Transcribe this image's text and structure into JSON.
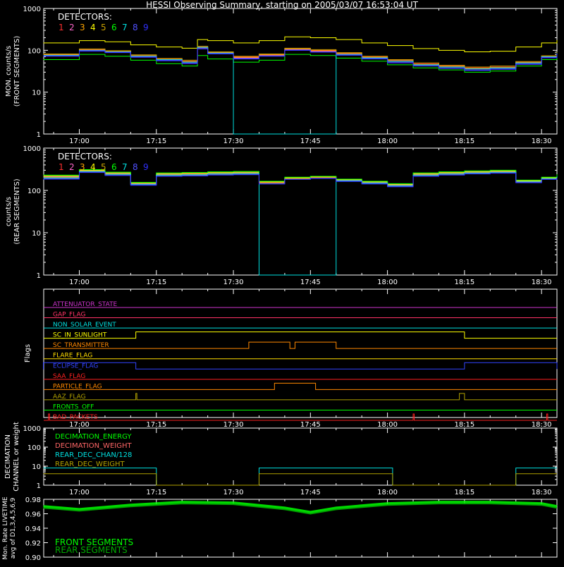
{
  "title": "HESSI Observing Summary, starting on 2005/03/07 16:53:04 UT",
  "colors": {
    "background": "#000000",
    "axes": "#ffffff",
    "detectors": [
      "#ff3030",
      "#ff66cc",
      "#ffa500",
      "#ffff00",
      "#c8a000",
      "#00ff00",
      "#00e0e0",
      "#5050ff",
      "#3030ff"
    ]
  },
  "time_axis": {
    "start": "16:53:04",
    "end": "18:33:00",
    "tick_labels": [
      "17:00",
      "17:15",
      "17:30",
      "17:45",
      "18:00",
      "18:15",
      "18:30"
    ]
  },
  "chart_data": [
    {
      "type": "line",
      "name": "front",
      "legend_title": "DETECTORS:",
      "legend_numbers": [
        "1",
        "2",
        "3",
        "4",
        "5",
        "6",
        "7",
        "8",
        "9"
      ],
      "ylabel": "MON. counts/s",
      "ylabel2": "(FRONT SEGMENTS)",
      "yscale": "log",
      "ylim": [
        1,
        1000
      ],
      "ytick_labels": [
        "1",
        "10",
        "100",
        "1000"
      ],
      "x": [
        "16:53",
        "17:00",
        "17:05",
        "17:10",
        "17:15",
        "17:20",
        "17:23",
        "17:25",
        "17:30",
        "17:35",
        "17:40",
        "17:45",
        "17:50",
        "17:55",
        "18:00",
        "18:05",
        "18:10",
        "18:15",
        "18:20",
        "18:25",
        "18:30",
        "18:33"
      ],
      "series": [
        {
          "values": [
            80,
            105,
            95,
            75,
            62,
            55,
            120,
            90,
            70,
            80,
            110,
            100,
            85,
            70,
            58,
            48,
            42,
            38,
            40,
            52,
            72,
            90
          ]
        },
        {
          "values": [
            75,
            100,
            92,
            72,
            60,
            52,
            115,
            85,
            66,
            76,
            105,
            95,
            80,
            66,
            55,
            45,
            40,
            36,
            38,
            50,
            70,
            86
          ]
        },
        {
          "values": [
            78,
            102,
            94,
            74,
            61,
            54,
            118,
            88,
            68,
            78,
            108,
            98,
            83,
            68,
            56,
            46,
            41,
            37,
            39,
            51,
            71,
            88
          ]
        },
        {
          "values": [
            150,
            170,
            160,
            135,
            120,
            112,
            180,
            170,
            150,
            170,
            210,
            200,
            180,
            150,
            130,
            110,
            100,
            92,
            95,
            120,
            150,
            175
          ]
        },
        {
          "values": [
            82,
            108,
            98,
            78,
            64,
            58,
            125,
            92,
            72,
            82,
            112,
            104,
            88,
            72,
            60,
            50,
            44,
            40,
            42,
            54,
            74,
            92
          ]
        },
        {
          "values": [
            60,
            80,
            72,
            58,
            48,
            42,
            75,
            62,
            52,
            58,
            80,
            75,
            65,
            55,
            45,
            38,
            34,
            30,
            32,
            42,
            60,
            78
          ]
        },
        {
          "values": [
            76,
            100,
            92,
            72,
            60,
            52,
            118,
            86,
            0,
            0,
            0,
            0,
            80,
            66,
            55,
            45,
            40,
            36,
            38,
            50,
            70,
            86
          ]
        },
        {
          "values": [
            74,
            98,
            90,
            70,
            58,
            50,
            110,
            84,
            64,
            74,
            102,
            92,
            78,
            64,
            52,
            43,
            38,
            34,
            36,
            48,
            68,
            84
          ]
        },
        {
          "values": [
            72,
            95,
            88,
            68,
            56,
            48,
            108,
            82,
            62,
            72,
            100,
            90,
            76,
            62,
            50,
            42,
            37,
            33,
            35,
            46,
            66,
            82
          ]
        }
      ]
    },
    {
      "type": "line",
      "name": "rear",
      "legend_title": "DETECTORS:",
      "legend_numbers": [
        "1",
        "2",
        "3",
        "4",
        "5",
        "6",
        "7",
        "8",
        "9"
      ],
      "ylabel": "counts/s",
      "ylabel2": "(REAR SEGMENTS)",
      "yscale": "log",
      "ylim": [
        1,
        1000
      ],
      "ytick_labels": [
        "1",
        "10",
        "100",
        "1000"
      ],
      "x": [
        "16:53",
        "17:00",
        "17:05",
        "17:10",
        "17:15",
        "17:20",
        "17:25",
        "17:30",
        "17:35",
        "17:40",
        "17:45",
        "17:50",
        "17:55",
        "18:00",
        "18:05",
        "18:10",
        "18:15",
        "18:20",
        "18:25",
        "18:30",
        "18:33"
      ],
      "series": [
        {
          "values": [
            200,
            280,
            240,
            140,
            230,
            235,
            245,
            250,
            150,
            190,
            200,
            170,
            150,
            130,
            230,
            245,
            260,
            270,
            160,
            190,
            210
          ]
        },
        {
          "values": [
            210,
            290,
            250,
            145,
            240,
            245,
            255,
            260,
            155,
            195,
            205,
            175,
            155,
            135,
            240,
            255,
            270,
            280,
            165,
            195,
            220
          ]
        },
        {
          "values": [
            205,
            285,
            245,
            142,
            235,
            240,
            250,
            255,
            152,
            192,
            202,
            172,
            152,
            132,
            235,
            250,
            265,
            275,
            162,
            192,
            215
          ]
        },
        {
          "values": [
            220,
            300,
            260,
            150,
            250,
            255,
            265,
            270,
            160,
            200,
            210,
            180,
            160,
            140,
            250,
            265,
            280,
            290,
            170,
            200,
            230
          ]
        },
        {
          "values": [
            195,
            275,
            235,
            138,
            225,
            230,
            240,
            245,
            148,
            188,
            198,
            168,
            148,
            128,
            225,
            240,
            255,
            265,
            158,
            188,
            205
          ]
        },
        {
          "values": [
            230,
            310,
            270,
            155,
            260,
            265,
            275,
            280,
            165,
            205,
            215,
            185,
            165,
            145,
            260,
            275,
            290,
            300,
            175,
            205,
            240
          ]
        },
        {
          "values": [
            200,
            280,
            240,
            140,
            230,
            235,
            245,
            250,
            0,
            0,
            0,
            170,
            150,
            130,
            230,
            245,
            260,
            270,
            160,
            190,
            210
          ]
        },
        {
          "values": [
            190,
            270,
            230,
            135,
            220,
            225,
            235,
            240,
            145,
            185,
            195,
            165,
            145,
            125,
            220,
            235,
            250,
            260,
            155,
            185,
            200
          ]
        },
        {
          "values": [
            185,
            265,
            225,
            132,
            215,
            220,
            230,
            235,
            142,
            182,
            192,
            162,
            142,
            122,
            215,
            230,
            245,
            255,
            152,
            182,
            195
          ]
        }
      ]
    },
    {
      "type": "line",
      "name": "flags",
      "ylabel": "Flags",
      "flags": [
        {
          "label": "ATTENUATOR_STATE",
          "color": "#cc33cc",
          "segments": []
        },
        {
          "label": "GAP_FLAG",
          "color": "#ff3366",
          "segments": []
        },
        {
          "label": "NON_SOLAR_EVENT",
          "color": "#00e0e0",
          "segments": []
        },
        {
          "label": "SC_IN_SUNLIGHT",
          "color": "#ffff00",
          "segments": [
            [
              "17:11",
              "18:15"
            ]
          ]
        },
        {
          "label": "SC_TRANSMITTER",
          "color": "#ff8800",
          "segments": [
            [
              "17:33",
              "17:41"
            ],
            [
              "17:42",
              "17:50"
            ]
          ]
        },
        {
          "label": "FLARE_FLAG",
          "color": "#ffdd00",
          "segments": []
        },
        {
          "label": "ECLIPSE_FLAG",
          "color": "#3344ff",
          "segments": [
            [
              "16:53",
              "17:11"
            ],
            [
              "18:15",
              "18:33"
            ]
          ]
        },
        {
          "label": "SAA_FLAG",
          "color": "#ff2222",
          "segments": []
        },
        {
          "label": "PARTICLE_FLAG",
          "color": "#ff8800",
          "segments": [
            [
              "17:38",
              "17:46"
            ]
          ]
        },
        {
          "label": "AAZ_FLAG",
          "color": "#b0a000",
          "segments": [
            [
              "17:11",
              "17:11"
            ],
            [
              "18:14",
              "18:15"
            ]
          ]
        },
        {
          "label": "FRONTS_OFF",
          "color": "#00ff00",
          "segments": []
        },
        {
          "label": "BAD_PACKETS",
          "color": "#ff2222",
          "segments": [
            [
              "16:54",
              "16:54"
            ],
            [
              "18:05",
              "18:05"
            ],
            [
              "18:31",
              "18:31"
            ]
          ]
        }
      ]
    },
    {
      "type": "line",
      "name": "decimation",
      "ylabel": "DECIMATION",
      "ylabel2": "CHANNEL or weight",
      "yscale": "log",
      "ylim": [
        1,
        1000
      ],
      "ytick_labels": [
        "1",
        "10",
        "100",
        "1000"
      ],
      "legend": [
        "DECIMATION_ENERGY",
        "DECIMATION_WEIGHT",
        "REAR_DEC_CHAN/128",
        "REAR_DEC_WEIGHT"
      ],
      "legend_colors": [
        "#00ff00",
        "#ff6666",
        "#00e0e0",
        "#b0a000"
      ],
      "x": [
        "16:53",
        "17:14",
        "17:15",
        "17:34",
        "17:35",
        "18:00",
        "18:01",
        "18:24",
        "18:25",
        "18:33"
      ],
      "series": [
        {
          "values": [
            8,
            8,
            1,
            1,
            8,
            8,
            1,
            1,
            8,
            8
          ]
        },
        {
          "values": [
            4,
            4,
            1,
            1,
            4,
            4,
            1,
            1,
            4,
            4
          ]
        }
      ]
    },
    {
      "type": "line",
      "name": "livetime",
      "ylabel": "Mon. Rate LIVETIME",
      "ylabel2": "avg of D1,3,4,5,6,9",
      "ylim": [
        0.9,
        0.98
      ],
      "ytick_labels": [
        "0.90",
        "0.92",
        "0.94",
        "0.96",
        "0.98"
      ],
      "legend": [
        "FRONT SEGMENTS",
        "REAR SEGMENTS"
      ],
      "legend_colors": [
        "#00ff00",
        "#00aa00"
      ],
      "x": [
        "16:53",
        "17:00",
        "17:10",
        "17:20",
        "17:30",
        "17:40",
        "17:45",
        "17:50",
        "18:00",
        "18:10",
        "18:20",
        "18:30",
        "18:33"
      ],
      "series": [
        {
          "values": [
            0.97,
            0.966,
            0.972,
            0.976,
            0.975,
            0.968,
            0.962,
            0.968,
            0.974,
            0.976,
            0.976,
            0.974,
            0.97
          ]
        },
        {
          "values": [
            0.968,
            0.964,
            0.97,
            0.974,
            0.973,
            0.966,
            0.96,
            0.966,
            0.972,
            0.974,
            0.974,
            0.972,
            0.968
          ]
        }
      ]
    }
  ]
}
